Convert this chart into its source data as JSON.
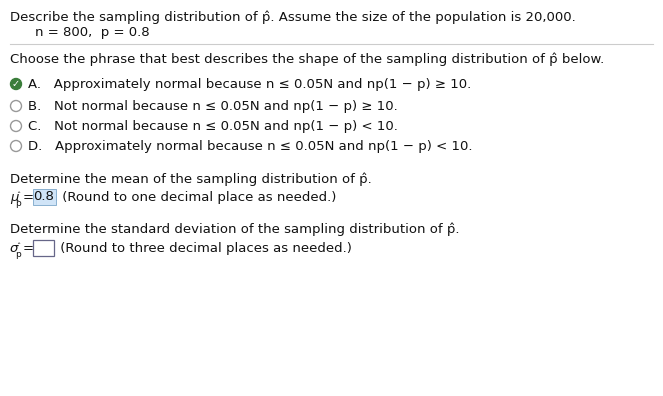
{
  "title_line1": "Describe the sampling distribution of p̂. Assume the size of the population is 20,000.",
  "params": "n = 800,  p = 0.8",
  "question2": "Choose the phrase that best describes the shape of the sampling distribution of p̂ below.",
  "options": [
    "A.   Approximately normal because n ≤ 0.05N and np(1 − p) ≥ 10.",
    "B.   Not normal because n ≤ 0.05N and np(1 − p) ≥ 10.",
    "C.   Not normal because n ≤ 0.05N and np(1 − p) < 10.",
    "D.   Approximately normal because n ≤ 0.05N and np(1 − p) < 10."
  ],
  "selected_option": 0,
  "mean_question": "Determine the mean of the sampling distribution of p̂.",
  "mean_value": "0.8",
  "mean_note": " (Round to one decimal place as needed.)",
  "std_question": "Determine the standard deviation of the sampling distribution of p̂.",
  "std_note": " (Round to three decimal places as needed.)",
  "bg_color": "#ffffff",
  "text_color": "#111111",
  "highlight_color": "#d0e4f7",
  "green_color": "#3a7d3a",
  "circle_color": "#999999",
  "line_color": "#cccccc",
  "font_size": 9.5
}
